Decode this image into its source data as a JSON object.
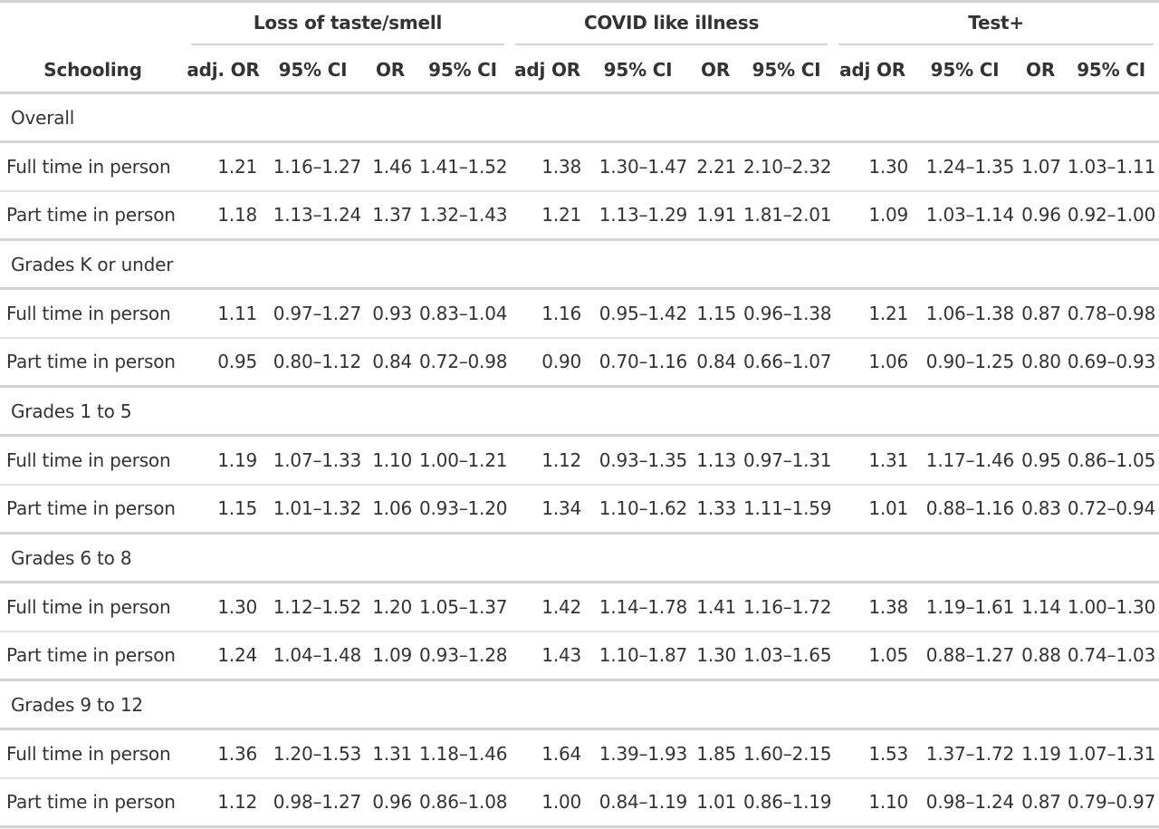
{
  "table": {
    "stub_header": "Schooling",
    "spanners": [
      "Loss of taste/smell",
      "COVID like illness",
      "Test+"
    ],
    "columns": [
      "adj. OR",
      "95% CI",
      "OR",
      "95% CI",
      "adj OR",
      "95% CI",
      "OR",
      "95% CI",
      "adj OR",
      "95% CI",
      "OR",
      "95% CI"
    ],
    "groups": [
      {
        "label": "Overall",
        "rows": [
          {
            "label": "Full time in person",
            "values": [
              "1.21",
              "1.16–1.27",
              "1.46",
              "1.41–1.52",
              "1.38",
              "1.30–1.47",
              "2.21",
              "2.10–2.32",
              "1.30",
              "1.24–1.35",
              "1.07",
              "1.03–1.11"
            ]
          },
          {
            "label": "Part time in person",
            "values": [
              "1.18",
              "1.13–1.24",
              "1.37",
              "1.32–1.43",
              "1.21",
              "1.13–1.29",
              "1.91",
              "1.81–2.01",
              "1.09",
              "1.03–1.14",
              "0.96",
              "0.92–1.00"
            ]
          }
        ]
      },
      {
        "label": "Grades K or under",
        "rows": [
          {
            "label": "Full time in person",
            "values": [
              "1.11",
              "0.97–1.27",
              "0.93",
              "0.83–1.04",
              "1.16",
              "0.95–1.42",
              "1.15",
              "0.96–1.38",
              "1.21",
              "1.06–1.38",
              "0.87",
              "0.78–0.98"
            ]
          },
          {
            "label": "Part time in person",
            "values": [
              "0.95",
              "0.80–1.12",
              "0.84",
              "0.72–0.98",
              "0.90",
              "0.70–1.16",
              "0.84",
              "0.66–1.07",
              "1.06",
              "0.90–1.25",
              "0.80",
              "0.69–0.93"
            ]
          }
        ]
      },
      {
        "label": "Grades 1 to 5",
        "rows": [
          {
            "label": "Full time in person",
            "values": [
              "1.19",
              "1.07–1.33",
              "1.10",
              "1.00–1.21",
              "1.12",
              "0.93–1.35",
              "1.13",
              "0.97–1.31",
              "1.31",
              "1.17–1.46",
              "0.95",
              "0.86–1.05"
            ]
          },
          {
            "label": "Part time in person",
            "values": [
              "1.15",
              "1.01–1.32",
              "1.06",
              "0.93–1.20",
              "1.34",
              "1.10–1.62",
              "1.33",
              "1.11–1.59",
              "1.01",
              "0.88–1.16",
              "0.83",
              "0.72–0.94"
            ]
          }
        ]
      },
      {
        "label": "Grades 6 to 8",
        "rows": [
          {
            "label": "Full time in person",
            "values": [
              "1.30",
              "1.12–1.52",
              "1.20",
              "1.05–1.37",
              "1.42",
              "1.14–1.78",
              "1.41",
              "1.16–1.72",
              "1.38",
              "1.19–1.61",
              "1.14",
              "1.00–1.30"
            ]
          },
          {
            "label": "Part time in person",
            "values": [
              "1.24",
              "1.04–1.48",
              "1.09",
              "0.93–1.28",
              "1.43",
              "1.10–1.87",
              "1.30",
              "1.03–1.65",
              "1.05",
              "0.88–1.27",
              "0.88",
              "0.74–1.03"
            ]
          }
        ]
      },
      {
        "label": "Grades 9 to 12",
        "rows": [
          {
            "label": "Full time in person",
            "values": [
              "1.36",
              "1.20–1.53",
              "1.31",
              "1.18–1.46",
              "1.64",
              "1.39–1.93",
              "1.85",
              "1.60–2.15",
              "1.53",
              "1.37–1.72",
              "1.19",
              "1.07–1.31"
            ]
          },
          {
            "label": "Part time in person",
            "values": [
              "1.12",
              "0.98–1.27",
              "0.96",
              "0.86–1.08",
              "1.00",
              "0.84–1.19",
              "1.01",
              "0.86–1.19",
              "1.10",
              "0.98–1.24",
              "0.87",
              "0.79–0.97"
            ]
          }
        ]
      }
    ]
  }
}
